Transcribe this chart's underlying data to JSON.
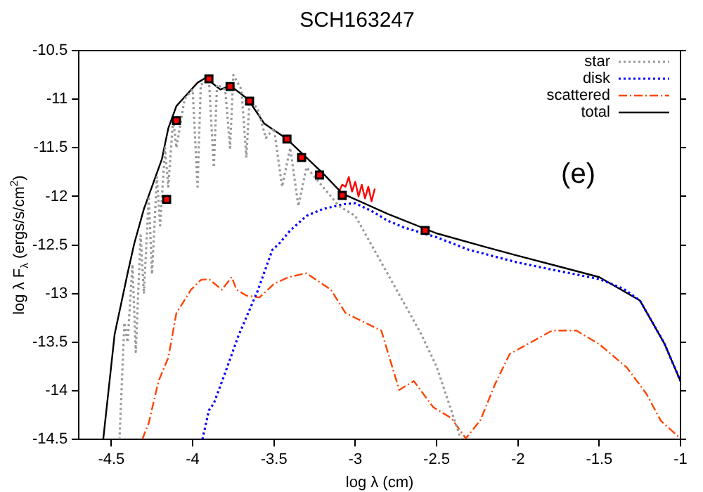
{
  "chart_data": {
    "type": "line",
    "title": "SCH163247",
    "xlabel": "log λ (cm)",
    "ylabel": "log λ F$_{λ}$ (ergs/s/cm$^{2}$)",
    "annotations": [
      "(e)"
    ],
    "xlim": [
      -4.7,
      -1
    ],
    "xticks": [
      -4.5,
      -4,
      -3.5,
      -3,
      -2.5,
      -2,
      -1.5,
      -1
    ],
    "ylim": [
      -14.5,
      -10.5
    ],
    "yticks": [
      -14.5,
      -14,
      -13.5,
      -13,
      -12.5,
      -12,
      -11.5,
      -11,
      -10.5
    ],
    "grid": false,
    "legend": "top right",
    "marker": "none",
    "series": [
      {
        "name": "star",
        "color": "#999999",
        "line_style": "dotted",
        "x": [
          -4.45,
          -4.42,
          -4.4,
          -4.37,
          -4.35,
          -4.32,
          -4.3,
          -4.27,
          -4.25,
          -4.22,
          -4.2,
          -4.17,
          -4.15,
          -4.12,
          -4.1,
          -4.05,
          -4.0,
          -3.97,
          -3.95,
          -3.9,
          -3.87,
          -3.85,
          -3.8,
          -3.77,
          -3.75,
          -3.7,
          -3.67,
          -3.65,
          -3.6,
          -3.55,
          -3.5,
          -3.45,
          -3.4,
          -3.35,
          -3.3,
          -3.2,
          -3.1,
          -3.0,
          -2.9,
          -2.8,
          -2.7,
          -2.6,
          -2.5,
          -2.4,
          -2.35
        ],
        "values": [
          -14.5,
          -13.3,
          -13.5,
          -12.7,
          -13.6,
          -12.4,
          -13.0,
          -12.0,
          -12.8,
          -11.8,
          -12.3,
          -11.5,
          -11.9,
          -11.2,
          -11.5,
          -11.0,
          -10.9,
          -11.9,
          -10.85,
          -10.8,
          -11.7,
          -10.85,
          -10.9,
          -11.5,
          -10.75,
          -10.9,
          -11.6,
          -11.0,
          -11.1,
          -11.4,
          -11.3,
          -11.9,
          -11.5,
          -12.1,
          -11.7,
          -11.9,
          -12.1,
          -12.2,
          -12.5,
          -12.8,
          -13.1,
          -13.4,
          -13.75,
          -14.25,
          -14.5
        ]
      },
      {
        "name": "disk",
        "color": "#0000ff",
        "line_style": "dotted",
        "x": [
          -3.94,
          -3.9,
          -3.87,
          -3.81,
          -3.72,
          -3.6,
          -3.51,
          -3.47,
          -3.4,
          -3.3,
          -3.2,
          -3.07,
          -3.0,
          -2.9,
          -2.8,
          -2.7,
          -2.5,
          -2.3,
          -2.0,
          -1.8,
          -1.5,
          -1.35,
          -1.25,
          -1.1,
          -1.0
        ],
        "values": [
          -14.5,
          -14.2,
          -14.13,
          -13.86,
          -13.44,
          -12.97,
          -12.55,
          -12.49,
          -12.35,
          -12.2,
          -12.13,
          -12.08,
          -12.07,
          -12.15,
          -12.25,
          -12.32,
          -12.42,
          -12.55,
          -12.68,
          -12.75,
          -12.85,
          -12.95,
          -13.07,
          -13.51,
          -13.9
        ]
      },
      {
        "name": "scattered",
        "color": "#ff4500",
        "line_style": "dashed",
        "x": [
          -4.31,
          -4.27,
          -4.21,
          -4.15,
          -4.1,
          -4.01,
          -3.95,
          -3.9,
          -3.82,
          -3.76,
          -3.73,
          -3.67,
          -3.59,
          -3.5,
          -3.41,
          -3.3,
          -3.15,
          -3.06,
          -2.84,
          -2.73,
          -2.64,
          -2.52,
          -2.41,
          -2.32,
          -2.23,
          -2.14,
          -2.05,
          -1.94,
          -1.79,
          -1.64,
          -1.5,
          -1.33,
          -1.21,
          -1.12,
          -1.0
        ],
        "values": [
          -14.5,
          -14.33,
          -13.9,
          -13.66,
          -13.2,
          -12.96,
          -12.86,
          -12.85,
          -12.96,
          -12.83,
          -12.96,
          -13.02,
          -13.04,
          -12.9,
          -12.83,
          -12.79,
          -12.96,
          -13.2,
          -13.38,
          -13.99,
          -13.9,
          -14.17,
          -14.28,
          -14.49,
          -14.3,
          -13.93,
          -13.62,
          -13.52,
          -13.38,
          -13.38,
          -13.52,
          -13.76,
          -14.03,
          -14.31,
          -14.49
        ]
      },
      {
        "name": "total",
        "color": "#000000",
        "line_style": "solid",
        "x": [
          -4.55,
          -4.48,
          -4.4,
          -4.36,
          -4.3,
          -4.19,
          -4.15,
          -4.1,
          -3.97,
          -3.92,
          -3.83,
          -3.77,
          -3.66,
          -3.56,
          -3.42,
          -3.2,
          -3.08,
          -3.0,
          -2.8,
          -2.5,
          -2.2,
          -2.0,
          -1.75,
          -1.5,
          -1.25,
          -1.1,
          -1.0
        ],
        "values": [
          -14.5,
          -13.42,
          -12.79,
          -12.49,
          -12.13,
          -11.62,
          -11.3,
          -11.07,
          -10.83,
          -10.78,
          -10.9,
          -10.86,
          -11.0,
          -11.25,
          -11.41,
          -11.76,
          -11.97,
          -12.03,
          -12.18,
          -12.38,
          -12.52,
          -12.61,
          -12.72,
          -12.83,
          -13.07,
          -13.51,
          -13.9
        ]
      },
      {
        "color": "#ff0000",
        "line_style": "solid",
        "x": [
          -3.1,
          -3.08,
          -3.06,
          -3.04,
          -3.02,
          -3.0,
          -2.98,
          -2.96,
          -2.94,
          -2.92,
          -2.9,
          -2.88
        ],
        "values": [
          -11.95,
          -11.88,
          -11.9,
          -11.8,
          -11.95,
          -11.85,
          -12.0,
          -11.88,
          -12.02,
          -11.9,
          -12.05,
          -11.92
        ]
      },
      {
        "type": "scatter",
        "marker": "square",
        "color": "#ff0000",
        "x": [
          -4.16,
          -4.1,
          -3.9,
          -3.77,
          -3.65,
          -3.42,
          -3.33,
          -3.22,
          -3.08,
          -2.57
        ],
        "values": [
          -12.03,
          -11.22,
          -10.79,
          -10.87,
          -11.02,
          -11.41,
          -11.6,
          -11.78,
          -11.99,
          -12.35
        ]
      }
    ]
  }
}
